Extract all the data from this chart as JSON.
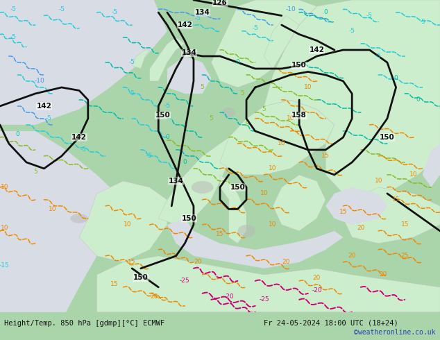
{
  "title_left": "Height/Temp. 850 hPa [gdmp][°C] ECMWF",
  "title_right": "Fr 24-05-2024 18:00 UTC (18+24)",
  "copyright": "©weatheronline.co.uk",
  "bg_map_color": "#aad4aa",
  "ocean_color": "#d8dce4",
  "land_green_color": "#b8ddb8",
  "land_light_green": "#cceecc",
  "gray_land_color": "#b0b0b0",
  "bottom_bar_color": "#d8d8d8",
  "bottom_text_color": "#111111",
  "copyright_color": "#2244aa",
  "fig_width": 6.34,
  "fig_height": 4.9,
  "dpi": 100,
  "label_fontsize": 7.5,
  "copyright_fontsize": 7.0,
  "isotherm_lw": 1.1,
  "contour_lw": 2.0,
  "blue_color": "#4499ee",
  "cyan_color": "#22ccdd",
  "teal_color": "#00bbaa",
  "lime_color": "#88bb22",
  "orange_color": "#ee8800",
  "magenta_color": "#cc0077",
  "black_color": "#111111"
}
